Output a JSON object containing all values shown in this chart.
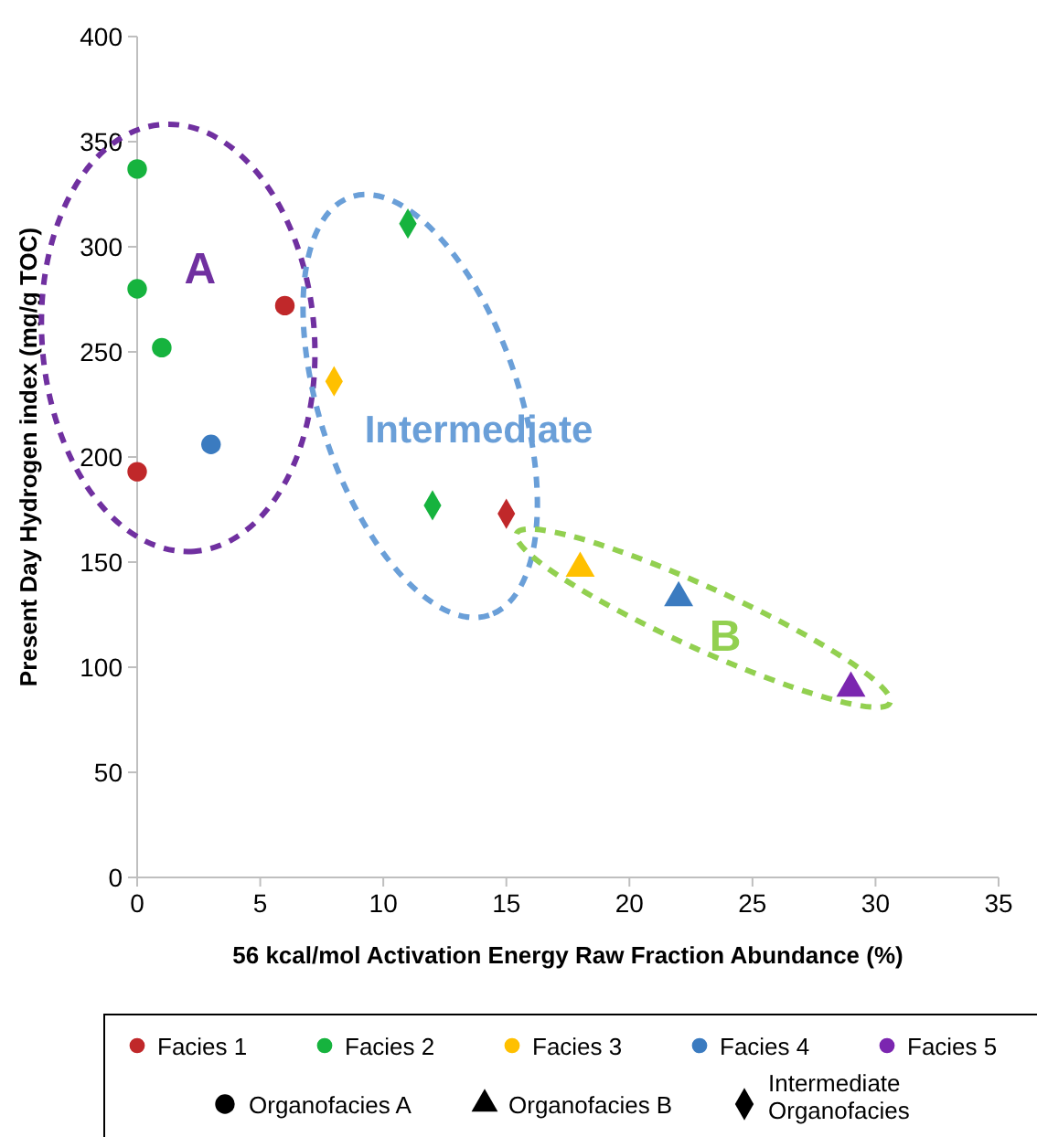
{
  "chart_data": {
    "type": "scatter",
    "xlabel": "56 kcal/mol Activation Energy Raw Fraction Abundance (%)",
    "ylabel": "Present Day Hydrogen index (mg/g TOC)",
    "xlim": [
      0,
      35
    ],
    "xticks": [
      0,
      5,
      10,
      15,
      20,
      25,
      30,
      35
    ],
    "ylim": [
      0,
      400
    ],
    "yticks": [
      0,
      50,
      100,
      150,
      200,
      250,
      300,
      350,
      400
    ],
    "grid": false,
    "legend": "bottom",
    "series": [
      {
        "name": "Facies 1",
        "color": "#c0282a",
        "marker": "circle",
        "x": [
          6,
          0
        ],
        "values": [
          272,
          193
        ]
      },
      {
        "name": "Facies 2",
        "color": "#16b33e",
        "marker": "circle",
        "x": [
          0,
          0,
          1
        ],
        "values": [
          337,
          280,
          252
        ]
      },
      {
        "name": "Facies 3",
        "color": "#ffc000",
        "marker": "circle"
      },
      {
        "name": "Facies 4",
        "color": "#3b7bc0",
        "marker": "circle",
        "x": [
          3
        ],
        "values": [
          206
        ]
      },
      {
        "name": "Facies 5",
        "color": "#7b26b0",
        "marker": "circle"
      },
      {
        "color": "#16b33e",
        "marker": "diamond",
        "x": [
          11,
          12
        ],
        "values": [
          311,
          177
        ]
      },
      {
        "color": "#ffc000",
        "marker": "diamond",
        "x": [
          8
        ],
        "values": [
          236
        ]
      },
      {
        "color": "#c0282a",
        "marker": "diamond",
        "x": [
          15
        ],
        "values": [
          173
        ]
      },
      {
        "color": "#ffc000",
        "marker": "triangle",
        "x": [
          18
        ],
        "values": [
          147
        ]
      },
      {
        "color": "#3b7bc0",
        "marker": "triangle",
        "x": [
          22
        ],
        "values": [
          133
        ]
      },
      {
        "color": "#7b26b0",
        "marker": "triangle",
        "x": [
          29
        ],
        "values": [
          90
        ]
      },
      {
        "name": "Organofacies A",
        "color": "#000000",
        "marker": "circle"
      },
      {
        "name": "Organofacies B",
        "color": "#000000",
        "marker": "triangle"
      },
      {
        "name": "Intermediate Organofacies",
        "color": "#000000",
        "marker": "diamond"
      }
    ],
    "annotations": [
      "A",
      "Intermediate",
      "B"
    ]
  }
}
